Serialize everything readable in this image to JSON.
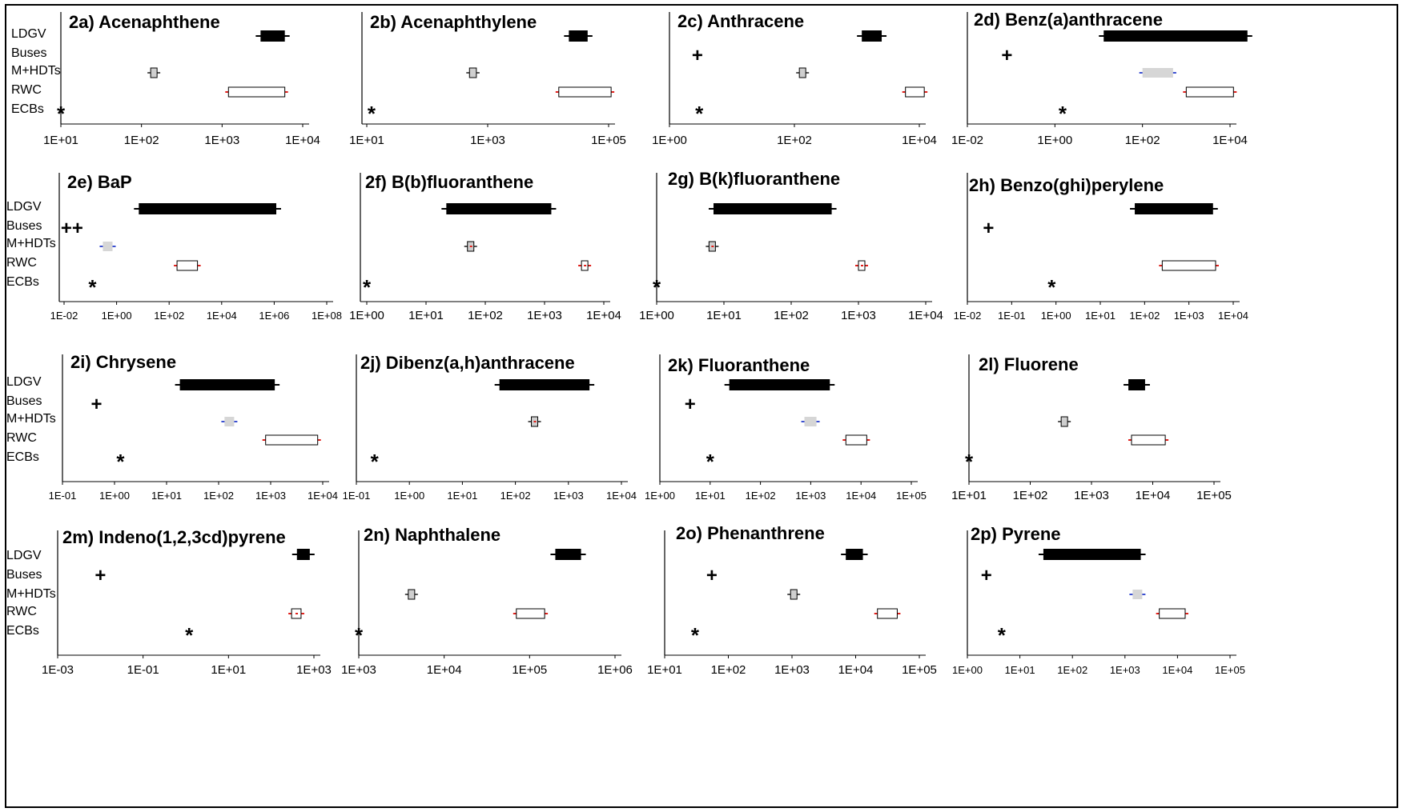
{
  "row_labels": [
    "LDGV",
    "Buses",
    "M+HDTs",
    "RWC",
    "ECBs"
  ],
  "colors": {
    "ldgv": "#000000",
    "mhdt_fill": "#cfcfcf",
    "mhdt_fill_light": "#d6d6d6",
    "rwc_fill": "#ffffff",
    "whisker_red": "#e0201b",
    "whisker_blue": "#3b4fd0",
    "axis": "#000000"
  },
  "chart_data": [
    {
      "id": "2a",
      "title": "2a) Acenaphthene",
      "type": "range",
      "scale": "log",
      "xticks": [
        "1E+01",
        "1E+02",
        "1E+03",
        "1E+04"
      ],
      "series": {
        "LDGV": {
          "kind": "bar",
          "min": 3000.0,
          "max": 6000.0
        },
        "M+HDTs": {
          "kind": "box",
          "min": 130.0,
          "max": 150.0
        },
        "RWC": {
          "kind": "box",
          "min": 1200.0,
          "max": 6000.0
        },
        "ECBs": {
          "kind": "marker",
          "symbol": "*",
          "value": 10.0
        }
      }
    },
    {
      "id": "2b",
      "title": "2b) Acenaphthylene",
      "type": "range",
      "scale": "log",
      "xticks": [
        "1E+01",
        "1E+03",
        "1E+05"
      ],
      "series": {
        "LDGV": {
          "kind": "bar",
          "min": 22000.0,
          "max": 45000.0
        },
        "M+HDTs": {
          "kind": "box",
          "min": 500.0,
          "max": 650.0
        },
        "RWC": {
          "kind": "box",
          "min": 15000.0,
          "max": 110000.0
        },
        "ECBs": {
          "kind": "marker",
          "symbol": "*",
          "value": 12.0
        }
      }
    },
    {
      "id": "2c",
      "title": "2c) Anthracene",
      "type": "range",
      "scale": "log",
      "xticks": [
        "1E+00",
        "1E+02",
        "1E+04"
      ],
      "series": {
        "LDGV": {
          "kind": "bar",
          "min": 1200.0,
          "max": 2500.0
        },
        "Buses": {
          "kind": "marker",
          "symbol": "+",
          "value": 2.8
        },
        "M+HDTs": {
          "kind": "box",
          "min": 120.0,
          "max": 150.0
        },
        "RWC": {
          "kind": "box",
          "min": 6000.0,
          "max": 12000.0
        },
        "ECBs": {
          "kind": "marker",
          "symbol": "*",
          "value": 3
        }
      }
    },
    {
      "id": "2d",
      "title": "2d) Benz(a)anthracene",
      "type": "range",
      "scale": "log",
      "xticks": [
        "1E-02",
        "1E+00",
        "1E+02",
        "1E+04"
      ],
      "series": {
        "LDGV": {
          "kind": "bar",
          "min": 13.0,
          "max": 25000.0
        },
        "Buses": {
          "kind": "marker",
          "symbol": "+",
          "value": 0.08
        },
        "M+HDTs": {
          "kind": "shade",
          "min": 100.0,
          "max": 500.0
        },
        "RWC": {
          "kind": "box",
          "min": 1000.0,
          "max": 12000.0
        },
        "ECBs": {
          "kind": "marker",
          "symbol": "*",
          "value": 1.5
        }
      }
    },
    {
      "id": "2e",
      "title": "2e) BaP",
      "type": "range",
      "scale": "log",
      "xticks": [
        "1E-02",
        "1E+00",
        "1E+02",
        "1E+04",
        "1E+06",
        "1E+08"
      ],
      "series": {
        "LDGV": {
          "kind": "bar",
          "min": 7,
          "max": 1200000.0
        },
        "Buses": {
          "kind": "marker",
          "symbol": "++",
          "value": 0.02
        },
        "M+HDTs": {
          "kind": "shade",
          "min": 0.3,
          "max": 0.7
        },
        "RWC": {
          "kind": "box",
          "min": 200.0,
          "max": 1200.0
        },
        "ECBs": {
          "kind": "marker",
          "symbol": "*",
          "value": 0.12
        }
      }
    },
    {
      "id": "2f",
      "title": "2f) B(b)fluoranthene",
      "type": "range",
      "scale": "log",
      "xticks": [
        "1E+00",
        "1E+01",
        "1E+02",
        "1E+03",
        "1E+04"
      ],
      "series": {
        "LDGV": {
          "kind": "bar",
          "min": 22.0,
          "max": 1300.0
        },
        "M+HDTs": {
          "kind": "box",
          "min": 50.0,
          "max": 60.0
        },
        "RWC": {
          "kind": "box",
          "min": 4200.0,
          "max": 4800.0
        },
        "ECBs": {
          "kind": "marker",
          "symbol": "*",
          "value": 1
        }
      }
    },
    {
      "id": "2g",
      "title": "2g) B(k)fluoranthene",
      "type": "range",
      "scale": "log",
      "xticks": [
        "1E+00",
        "1E+01",
        "1E+02",
        "1E+03",
        "1E+04"
      ],
      "series": {
        "LDGV": {
          "kind": "bar",
          "min": 7,
          "max": 400.0
        },
        "M+HDTs": {
          "kind": "box",
          "min": 6,
          "max": 7
        },
        "RWC": {
          "kind": "box",
          "min": 1000.0,
          "max": 1200.0
        },
        "ECBs": {
          "kind": "marker",
          "symbol": "*",
          "value": 1
        }
      }
    },
    {
      "id": "2h",
      "title": "2h) Benzo(ghi)perylene",
      "type": "range",
      "scale": "log",
      "xticks": [
        "1E-02",
        "1E-01",
        "1E+00",
        "1E+01",
        "1E+02",
        "1E+03",
        "1E+04"
      ],
      "series": {
        "LDGV": {
          "kind": "bar",
          "min": 60.0,
          "max": 3500.0
        },
        "Buses": {
          "kind": "marker",
          "symbol": "+",
          "value": 0.03
        },
        "RWC": {
          "kind": "box",
          "min": 250.0,
          "max": 4000.0
        },
        "ECBs": {
          "kind": "marker",
          "symbol": "*",
          "value": 0.8
        }
      }
    },
    {
      "id": "2i",
      "title": "2i) Chrysene",
      "type": "range",
      "scale": "log",
      "xticks": [
        "1E-01",
        "1E+00",
        "1E+01",
        "1E+02",
        "1E+03",
        "1E+04"
      ],
      "series": {
        "LDGV": {
          "kind": "bar",
          "min": 18.0,
          "max": 1200.0
        },
        "Buses": {
          "kind": "marker",
          "symbol": "+",
          "value": 0.45
        },
        "M+HDTs": {
          "kind": "shade",
          "min": 130.0,
          "max": 170.0
        },
        "RWC": {
          "kind": "box",
          "min": 800.0,
          "max": 8000.0
        },
        "ECBs": {
          "kind": "marker",
          "symbol": "*",
          "value": 1.3
        }
      }
    },
    {
      "id": "2j",
      "title": "2j) Dibenz(a,h)anthracene",
      "type": "range",
      "scale": "log",
      "xticks": [
        "1E-01",
        "1E+00",
        "1E+01",
        "1E+02",
        "1E+03",
        "1E+04"
      ],
      "series": {
        "LDGV": {
          "kind": "bar",
          "min": 50.0,
          "max": 2500.0
        },
        "M+HDTs": {
          "kind": "box",
          "min": 200.0,
          "max": 240.0
        },
        "ECBs": {
          "kind": "marker",
          "symbol": "*",
          "value": 0.22
        }
      }
    },
    {
      "id": "2k",
      "title": "2k) Fluoranthene",
      "type": "range",
      "scale": "log",
      "xticks": [
        "1E+00",
        "1E+01",
        "1E+02",
        "1E+03",
        "1E+04",
        "1E+05"
      ],
      "series": {
        "LDGV": {
          "kind": "bar",
          "min": 24.0,
          "max": 2400.0
        },
        "Buses": {
          "kind": "marker",
          "symbol": "+",
          "value": 4
        },
        "M+HDTs": {
          "kind": "shade",
          "min": 750.0,
          "max": 1300.0
        },
        "RWC": {
          "kind": "box",
          "min": 5000.0,
          "max": 13000.0
        },
        "ECBs": {
          "kind": "marker",
          "symbol": "*",
          "value": 10.0
        }
      }
    },
    {
      "id": "2l",
      "title": "2l) Fluorene",
      "type": "range",
      "scale": "log",
      "xticks": [
        "1E+01",
        "1E+02",
        "1E+03",
        "1E+04",
        "1E+05"
      ],
      "series": {
        "LDGV": {
          "kind": "bar",
          "min": 4000.0,
          "max": 7500.0
        },
        "M+HDTs": {
          "kind": "box",
          "min": 320.0,
          "max": 370.0
        },
        "RWC": {
          "kind": "box",
          "min": 4500.0,
          "max": 16000.0
        },
        "ECBs": {
          "kind": "marker",
          "symbol": "*",
          "value": 10.0
        }
      }
    },
    {
      "id": "2m",
      "title": "2m) Indeno(1,2,3cd)pyrene",
      "type": "range",
      "scale": "log",
      "xticks": [
        "1E-03",
        "1E-01",
        "1E+01",
        "1E+03"
      ],
      "series": {
        "LDGV": {
          "kind": "bar",
          "min": 400.0,
          "max": 800.0
        },
        "Buses": {
          "kind": "marker",
          "symbol": "+",
          "value": 0.01
        },
        "RWC": {
          "kind": "box",
          "min": 300.0,
          "max": 500.0
        },
        "ECBs": {
          "kind": "marker",
          "symbol": "*",
          "value": 1.2
        }
      }
    },
    {
      "id": "2n",
      "title": "2n) Naphthalene",
      "type": "range",
      "scale": "log",
      "xticks": [
        "1E+03",
        "1E+04",
        "1E+05",
        "1E+06"
      ],
      "series": {
        "LDGV": {
          "kind": "bar",
          "min": 200000.0,
          "max": 400000.0
        },
        "M+HDTs": {
          "kind": "box",
          "min": 3800.0,
          "max": 4400.0
        },
        "RWC": {
          "kind": "box",
          "min": 70000.0,
          "max": 150000.0
        },
        "ECBs": {
          "kind": "marker",
          "symbol": "*",
          "value": 1000.0
        }
      }
    },
    {
      "id": "2o",
      "title": "2o) Phenanthrene",
      "type": "range",
      "scale": "log",
      "xticks": [
        "1E+01",
        "1E+02",
        "1E+03",
        "1E+04",
        "1E+05"
      ],
      "series": {
        "LDGV": {
          "kind": "bar",
          "min": 7000.0,
          "max": 13000.0
        },
        "Buses": {
          "kind": "marker",
          "symbol": "+",
          "value": 55.0
        },
        "M+HDTs": {
          "kind": "box",
          "min": 950.0,
          "max": 1100.0
        },
        "RWC": {
          "kind": "box",
          "min": 22000.0,
          "max": 45000.0
        },
        "ECBs": {
          "kind": "marker",
          "symbol": "*",
          "value": 30.0
        }
      }
    },
    {
      "id": "2p",
      "title": "2p) Pyrene",
      "type": "range",
      "scale": "log",
      "xticks": [
        "1E+00",
        "1E+01",
        "1E+02",
        "1E+03",
        "1E+04",
        "1E+05"
      ],
      "series": {
        "LDGV": {
          "kind": "bar",
          "min": 28.0,
          "max": 2000.0
        },
        "Buses": {
          "kind": "marker",
          "symbol": "+",
          "value": 2.3
        },
        "M+HDTs": {
          "kind": "shade",
          "min": 1400.0,
          "max": 2000.0
        },
        "RWC": {
          "kind": "box",
          "min": 4500.0,
          "max": 14000.0
        },
        "ECBs": {
          "kind": "marker",
          "symbol": "*",
          "value": 4.5
        }
      }
    }
  ]
}
